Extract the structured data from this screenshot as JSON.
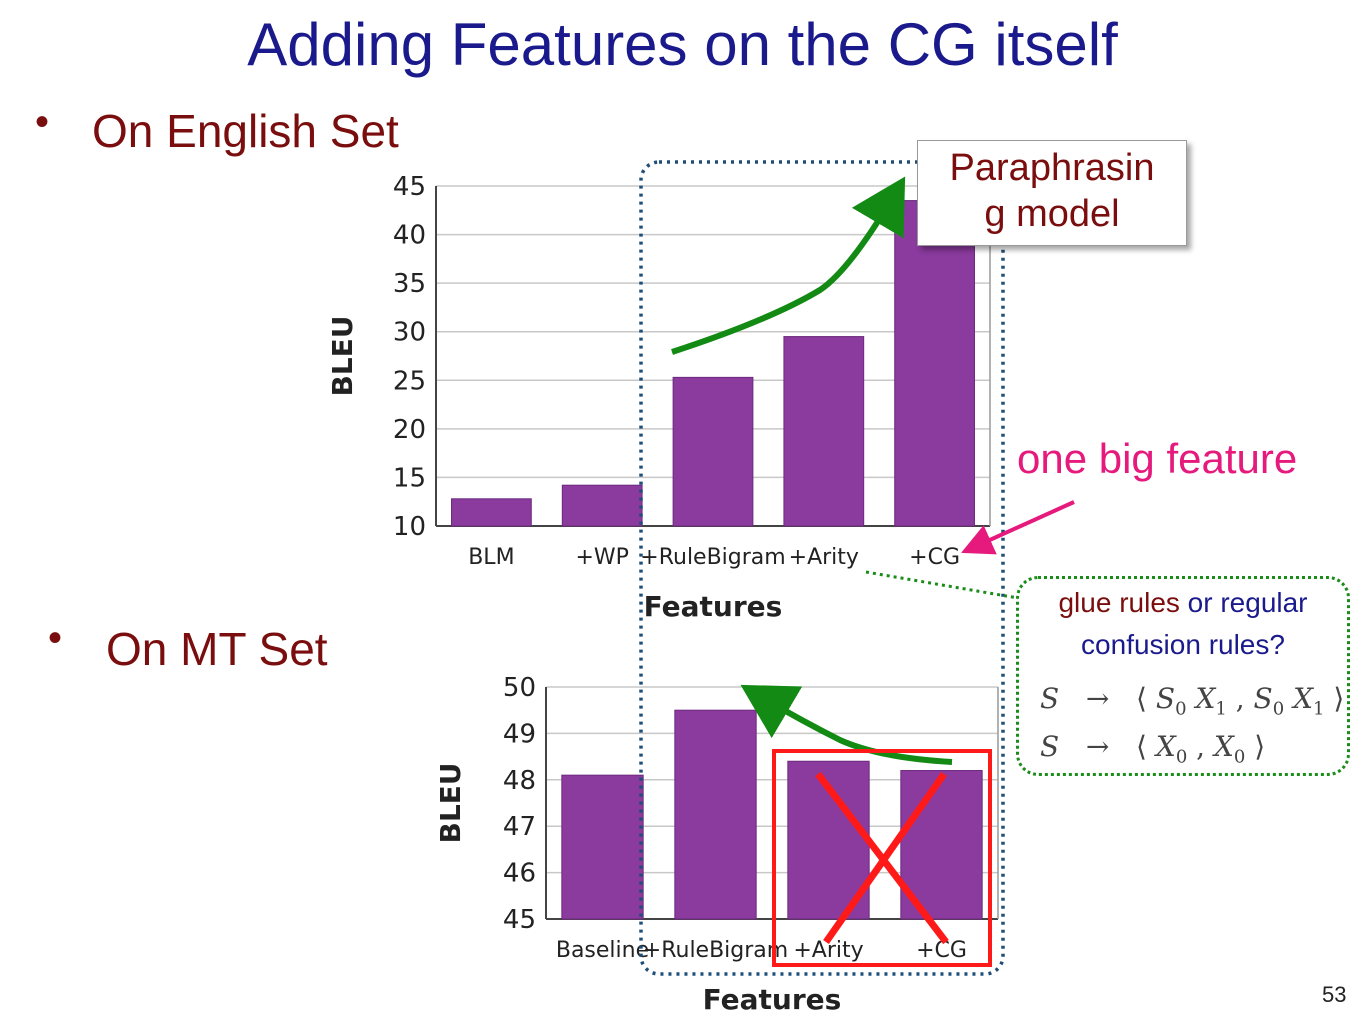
{
  "slide": {
    "title": "Adding Features on the CG itself",
    "bullet1": "On English Set",
    "bullet2": "On MT Set",
    "page_number": "53"
  },
  "callouts": {
    "paraphrasing_line1": "Paraphrasin",
    "paraphrasing_line2": "g model",
    "one_big_feature": "one big feature",
    "glue_part1": "glue rules",
    "glue_part2": " or regular",
    "glue_line2": "confusion rules?",
    "rule1": {
      "lhs": "S",
      "arrow": "→",
      "s0": "S",
      "x1": "X",
      "sub0": "0",
      "sub1": "1"
    },
    "rule2": {
      "lhs": "S",
      "arrow": "→",
      "x0": "X",
      "sub0": "0"
    }
  },
  "colors": {
    "bar": "#8b3a9e",
    "title": "#1a1a8c",
    "bullet": "#7a0e0e",
    "highlight": "#e6197d",
    "green_arrow": "#138a13",
    "cross": "#ff1a1a",
    "dotted_box": "#1f4e79"
  },
  "chart_data": [
    {
      "type": "bar",
      "categories": [
        "BLM",
        "+WP",
        "+RuleBigram",
        "+Arity",
        "+CG"
      ],
      "values": [
        12.8,
        14.2,
        25.3,
        29.5,
        43.5
      ],
      "xlabel": "Features",
      "ylabel": "BLEU",
      "ylim": [
        10,
        45
      ],
      "yticks": [
        10,
        15,
        20,
        25,
        30,
        35,
        40,
        45
      ],
      "grid": true
    },
    {
      "type": "bar",
      "categories": [
        "Baseline",
        "+RuleBigram",
        "+Arity",
        "+CG"
      ],
      "values": [
        48.1,
        49.5,
        48.4,
        48.2
      ],
      "xlabel": "Features",
      "ylabel": "BLEU",
      "ylim": [
        45,
        50
      ],
      "yticks": [
        45,
        46,
        47,
        48,
        49,
        50
      ],
      "grid": true
    }
  ]
}
